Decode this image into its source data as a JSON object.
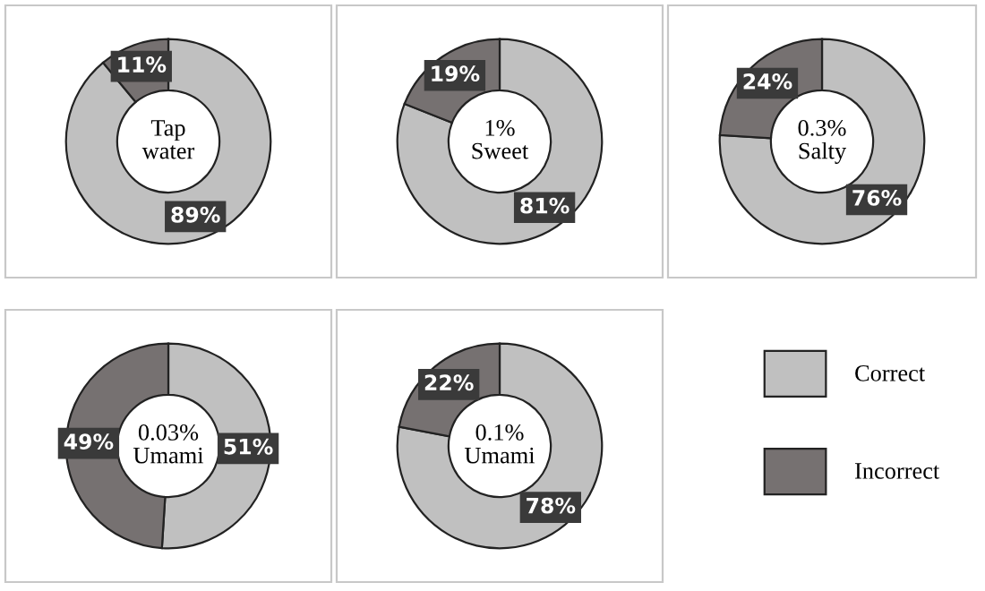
{
  "chart_data": [
    {
      "type": "donut",
      "title": "Tap\nwater",
      "categories": [
        "Correct",
        "Incorrect"
      ],
      "values": [
        89,
        11
      ],
      "value_labels": [
        "89%",
        "11%"
      ],
      "colors": [
        "#c0c0c0",
        "#767171"
      ],
      "legend": "right"
    },
    {
      "type": "donut",
      "title": "1%\nSweet",
      "categories": [
        null,
        null
      ],
      "values": [
        81,
        19
      ],
      "value_labels": [
        "81%",
        "19%"
      ],
      "colors": [
        "#c0c0c0",
        "#767171"
      ]
    },
    {
      "type": "donut",
      "title": "0.3%\nSalty",
      "categories": [
        null,
        null
      ],
      "values": [
        76,
        24
      ],
      "value_labels": [
        "76%",
        "24%"
      ],
      "colors": [
        "#c0c0c0",
        "#767171"
      ]
    },
    {
      "type": "donut",
      "title": "0.03%\nUmami",
      "categories": [
        null,
        null
      ],
      "values": [
        51,
        49
      ],
      "value_labels": [
        "51%",
        "49%"
      ],
      "colors": [
        "#c0c0c0",
        "#767171"
      ]
    },
    {
      "type": "donut",
      "title": "0.1%\nUmami",
      "categories": [
        null,
        null
      ],
      "values": [
        78,
        22
      ],
      "value_labels": [
        "78%",
        "22%"
      ],
      "colors": [
        "#c0c0c0",
        "#767171"
      ]
    }
  ]
}
